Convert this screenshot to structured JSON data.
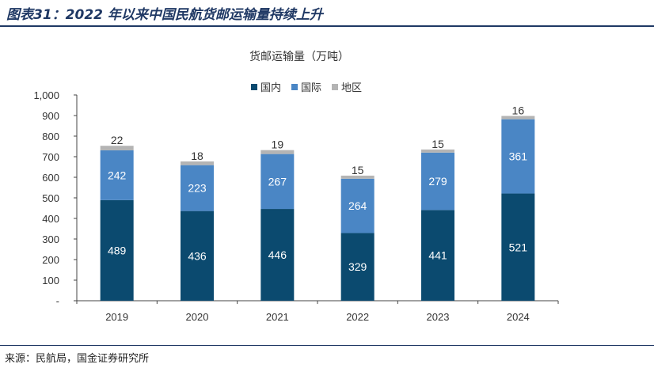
{
  "header": {
    "title": "图表31：2022 年以来中国民航货邮运输量持续上升"
  },
  "footer": {
    "source": "来源：民航局，国金证券研究所"
  },
  "chart_data": {
    "type": "bar",
    "stacked": true,
    "title": "货邮运输量（万吨）",
    "categories": [
      "2019",
      "2020",
      "2021",
      "2022",
      "2023",
      "2024"
    ],
    "series": [
      {
        "name": "国内",
        "values": [
          489,
          436,
          446,
          329,
          441,
          521
        ],
        "color": "#0b4a6f",
        "label_color": "#ffffff"
      },
      {
        "name": "国际",
        "values": [
          242,
          223,
          267,
          264,
          279,
          361
        ],
        "color": "#4a86c5",
        "label_color": "#ffffff"
      },
      {
        "name": "地区",
        "values": [
          22,
          18,
          19,
          15,
          15,
          16
        ],
        "color": "#b4b4b4",
        "label_color": "#333333"
      }
    ],
    "y_ticks": [
      "-",
      "100",
      "200",
      "300",
      "400",
      "500",
      "600",
      "700",
      "800",
      "900",
      "1,000"
    ],
    "ylim": [
      0,
      1000
    ],
    "legend_position": "top-center",
    "grid": false
  }
}
